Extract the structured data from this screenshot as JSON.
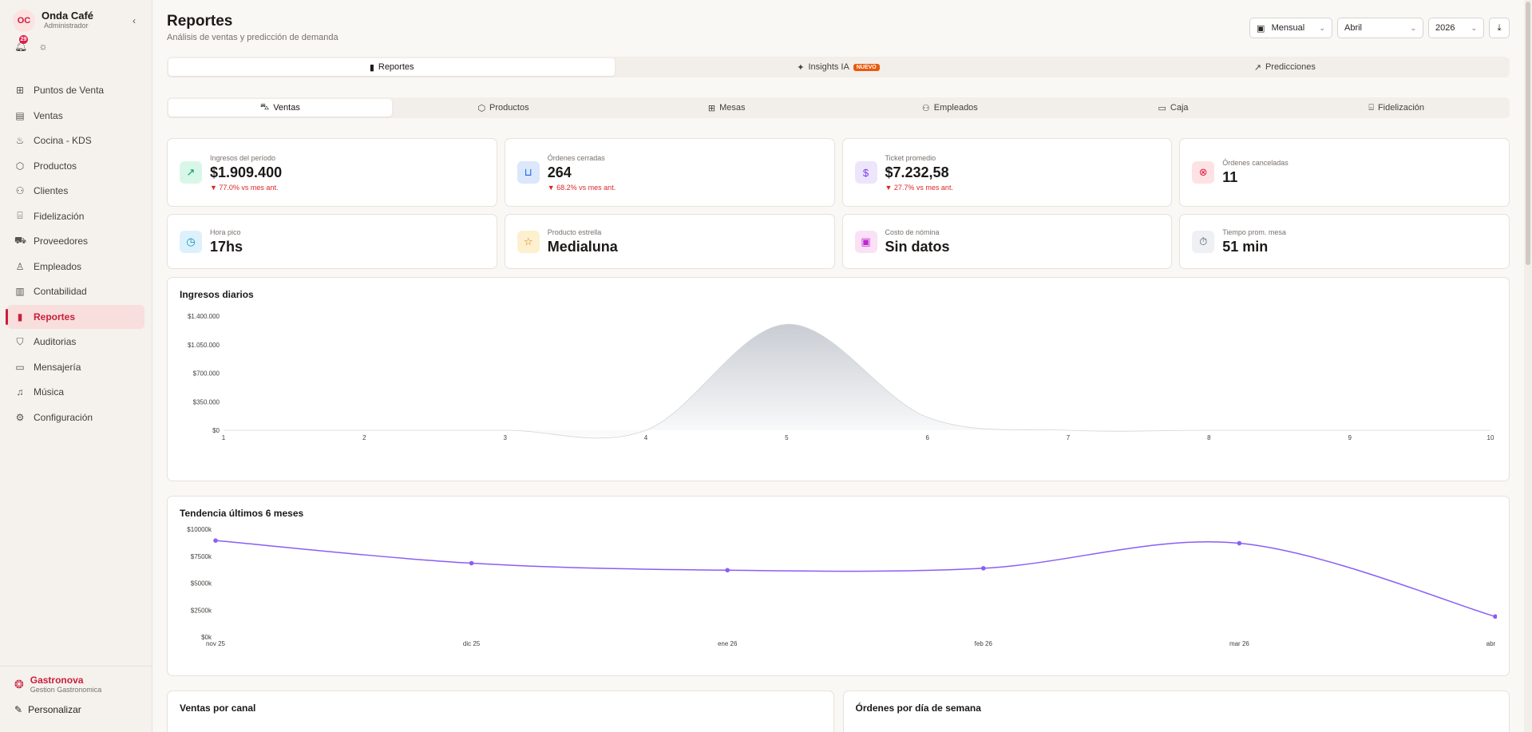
{
  "brand": {
    "initials": "OC",
    "name": "Onda Café",
    "role": "Administrador",
    "notifications": "29"
  },
  "nav": [
    {
      "label": "Puntos de Venta",
      "icon": "grid-icon"
    },
    {
      "label": "Ventas",
      "icon": "clipboard-icon"
    },
    {
      "label": "Cocina - KDS",
      "icon": "chef-hat-icon"
    },
    {
      "label": "Productos",
      "icon": "package-icon"
    },
    {
      "label": "Clientes",
      "icon": "users-icon"
    },
    {
      "label": "Fidelización",
      "icon": "gift-icon"
    },
    {
      "label": "Proveedores",
      "icon": "truck-icon"
    },
    {
      "label": "Empleados",
      "icon": "user-icon"
    },
    {
      "label": "Contabilidad",
      "icon": "book-icon"
    },
    {
      "label": "Reportes",
      "icon": "bar-chart-icon",
      "active": true
    },
    {
      "label": "Auditorias",
      "icon": "shield-icon"
    },
    {
      "label": "Mensajería",
      "icon": "message-icon"
    },
    {
      "label": "Música",
      "icon": "music-icon"
    },
    {
      "label": "Configuración",
      "icon": "gear-icon"
    }
  ],
  "footer": {
    "name": "Gastronova",
    "sub": "Gestion Gastronomica",
    "personalize": "Personalizar"
  },
  "header": {
    "title": "Reportes",
    "subtitle": "Análisis de ventas y predicción de demanda"
  },
  "filters": {
    "period": "Mensual",
    "month": "Abril",
    "year": "2026"
  },
  "tabs": [
    {
      "label": "Reportes",
      "active": true
    },
    {
      "label": "Insights IA",
      "badge": "NUEVO"
    },
    {
      "label": "Predicciones"
    }
  ],
  "subtabs": [
    {
      "label": "Ventas",
      "active": true
    },
    {
      "label": "Productos"
    },
    {
      "label": "Mesas"
    },
    {
      "label": "Empleados"
    },
    {
      "label": "Caja"
    },
    {
      "label": "Fidelización"
    }
  ],
  "cards": [
    {
      "label": "Ingresos del período",
      "value": "$1.909.400",
      "delta": "▼ 77.0% vs mes ant.",
      "icon": "trending-up-icon",
      "bg": "#d9f7e8",
      "fg": "#059669"
    },
    {
      "label": "Órdenes cerradas",
      "value": "264",
      "delta": "▼ 68.2% vs mes ant.",
      "icon": "shopping-bag-icon",
      "bg": "#dbe7fb",
      "fg": "#2563eb"
    },
    {
      "label": "Ticket promedio",
      "value": "$7.232,58",
      "delta": "▼ 27.7% vs mes ant.",
      "icon": "receipt-icon",
      "bg": "#ece5fb",
      "fg": "#7c3aed"
    },
    {
      "label": "Órdenes canceladas",
      "value": "11",
      "delta": "",
      "icon": "x-circle-icon",
      "bg": "#fde2e4",
      "fg": "#e11d48"
    },
    {
      "label": "Hora pico",
      "value": "17hs",
      "delta": "",
      "icon": "clock-icon",
      "bg": "#dcf1fb",
      "fg": "#0891b2"
    },
    {
      "label": "Producto estrella",
      "value": "Medialuna",
      "delta": "",
      "icon": "star-icon",
      "bg": "#fdf0cf",
      "fg": "#d97706"
    },
    {
      "label": "Costo de nómina",
      "value": "Sin datos",
      "delta": "",
      "icon": "wallet-icon",
      "bg": "#fae1f5",
      "fg": "#c026d3"
    },
    {
      "label": "Tiempo prom. mesa",
      "value": "51 min",
      "delta": "",
      "icon": "timer-icon",
      "bg": "#eef0f3",
      "fg": "#475569"
    }
  ],
  "chart_data": [
    {
      "type": "area",
      "title": "Ingresos diarios",
      "x": [
        1,
        2,
        3,
        4,
        5,
        6,
        7,
        8,
        9,
        10
      ],
      "series": [
        {
          "values": [
            0,
            0,
            0,
            0,
            1300000,
            160000,
            0,
            0,
            0,
            0
          ]
        }
      ],
      "ylim": [
        0,
        1400000
      ],
      "yticks": [
        "$0",
        "$350.000",
        "$700.000",
        "$1.050.000",
        "$1.400.000"
      ],
      "grid": false,
      "color": "#9ca3af"
    },
    {
      "type": "line",
      "title": "Tendencia últimos 6 meses",
      "categories": [
        "nov 25",
        "dic 25",
        "ene 26",
        "feb 26",
        "mar 26",
        "abr 26"
      ],
      "series": [
        {
          "values": [
            8950,
            6850,
            6200,
            6380,
            8700,
            1900
          ]
        }
      ],
      "ylim": [
        0,
        10000
      ],
      "yticks": [
        "$0k",
        "$2500k",
        "$5000k",
        "$7500k",
        "$10000k"
      ],
      "grid": false,
      "color": "#8b5cf6"
    }
  ],
  "bottom": {
    "left_title": "Ventas por canal",
    "right_title": "Órdenes por día de semana"
  }
}
